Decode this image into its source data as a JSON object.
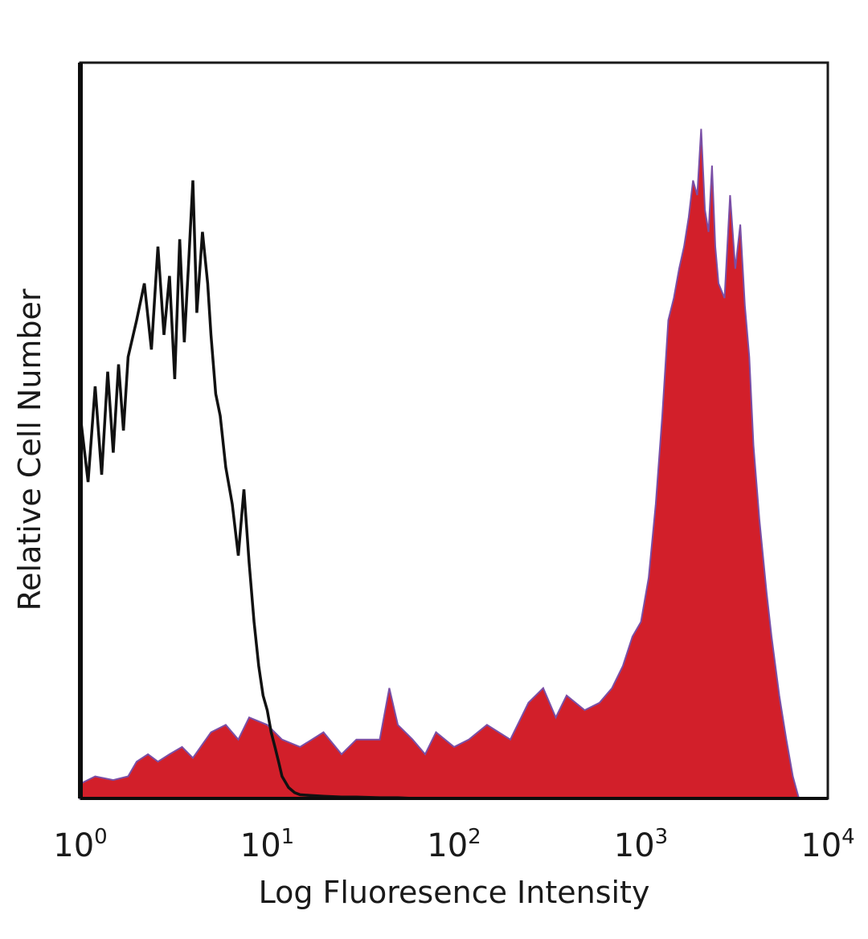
{
  "chart_data": {
    "type": "area",
    "xlabel": "Log Fluoresence Intensity",
    "ylabel": "Relative Cell Number",
    "x_scale": "log",
    "xlim": [
      1,
      10000
    ],
    "ylim": [
      0,
      100
    ],
    "grid": false,
    "legend": "none",
    "x_ticks": [
      {
        "base": "10",
        "exp": "0",
        "value": 1
      },
      {
        "base": "10",
        "exp": "1",
        "value": 10
      },
      {
        "base": "10",
        "exp": "2",
        "value": 100
      },
      {
        "base": "10",
        "exp": "3",
        "value": 1000
      },
      {
        "base": "10",
        "exp": "4",
        "value": 10000
      }
    ],
    "series": [
      {
        "style": "outline",
        "color": "#111111",
        "x": [
          1.0,
          1.1,
          1.2,
          1.3,
          1.4,
          1.5,
          1.6,
          1.7,
          1.8,
          2.0,
          2.2,
          2.4,
          2.6,
          2.8,
          3.0,
          3.2,
          3.4,
          3.6,
          3.8,
          4.0,
          4.2,
          4.5,
          4.8,
          5.0,
          5.3,
          5.6,
          6.0,
          6.5,
          7.0,
          7.5,
          8.0,
          8.5,
          9.0,
          9.5,
          10.0,
          10.5,
          11.0,
          11.5,
          12.0,
          13.0,
          14.0,
          15.0,
          17.0,
          20.0,
          25.0,
          30.0,
          40.0,
          50.0,
          60.0
        ],
        "y": [
          52,
          43,
          56,
          44,
          58,
          47,
          59,
          50,
          60,
          65,
          70,
          61,
          75,
          63,
          71,
          57,
          76,
          62,
          73,
          84,
          66,
          77,
          70,
          63,
          55,
          52,
          45,
          40,
          33,
          42,
          32,
          24,
          18,
          14,
          12,
          9,
          7,
          5,
          3,
          1.5,
          0.8,
          0.5,
          0.4,
          0.3,
          0.2,
          0.2,
          0.1,
          0.1,
          0
        ]
      },
      {
        "style": "filled",
        "color": "#d21f2a",
        "edge_color": "#7a4fa6",
        "x": [
          1.0,
          1.2,
          1.5,
          1.8,
          2.0,
          2.3,
          2.6,
          3.0,
          3.5,
          4.0,
          5.0,
          6.0,
          7.0,
          8.0,
          10.0,
          12.0,
          15.0,
          20.0,
          25.0,
          30.0,
          40.0,
          45.0,
          50.0,
          60.0,
          70.0,
          80.0,
          100.0,
          120.0,
          150.0,
          200.0,
          250.0,
          300.0,
          350.0,
          400.0,
          500.0,
          600.0,
          700.0,
          800.0,
          900.0,
          1000.0,
          1100.0,
          1200.0,
          1300.0,
          1400.0,
          1500.0,
          1600.0,
          1700.0,
          1800.0,
          1900.0,
          2000.0,
          2100.0,
          2200.0,
          2300.0,
          2400.0,
          2500.0,
          2600.0,
          2800.0,
          3000.0,
          3200.0,
          3400.0,
          3600.0,
          3800.0,
          4000.0,
          4300.0,
          4700.0,
          5000.0,
          5500.0,
          6000.0,
          6500.0,
          7000.0
        ],
        "y": [
          2,
          3,
          2.5,
          3,
          5,
          6,
          5,
          6,
          7,
          5.5,
          9,
          10,
          8,
          11,
          10,
          8,
          7,
          9,
          6,
          8,
          8,
          15,
          10,
          8,
          6,
          9,
          7,
          8,
          10,
          8,
          13,
          15,
          11,
          14,
          12,
          13,
          15,
          18,
          22,
          24,
          30,
          40,
          52,
          65,
          68,
          72,
          75,
          79,
          84,
          82,
          91,
          80,
          77,
          86,
          75,
          70,
          68,
          82,
          72,
          78,
          67,
          60,
          48,
          38,
          28,
          22,
          14,
          8,
          3,
          0
        ]
      }
    ]
  }
}
